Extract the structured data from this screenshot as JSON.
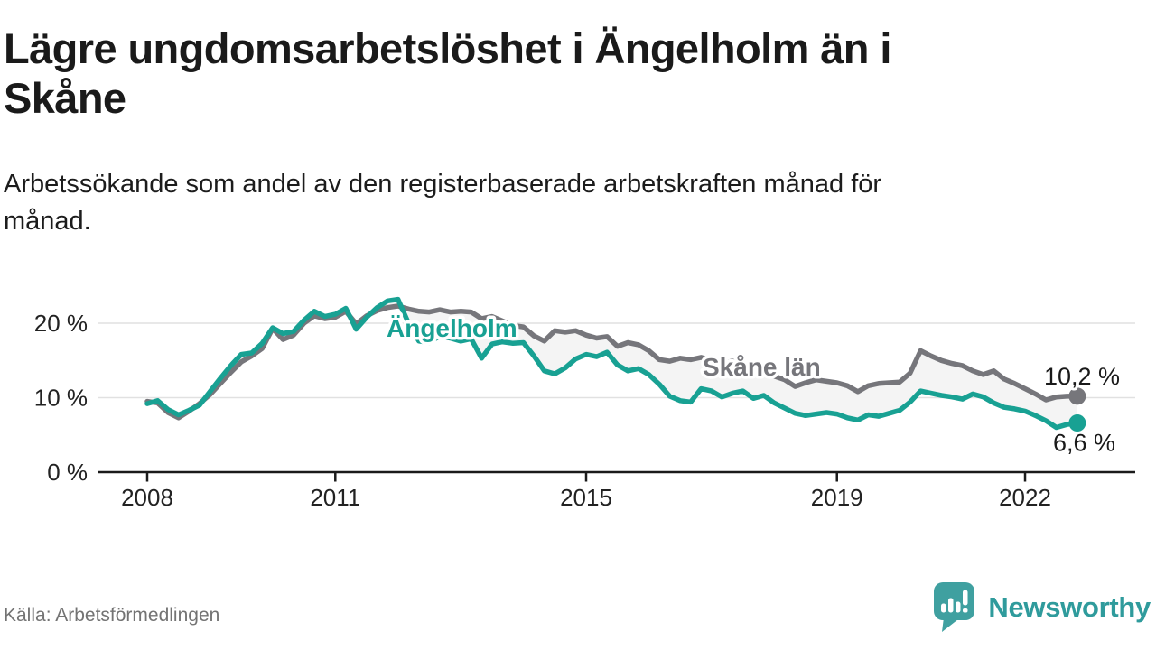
{
  "header": {
    "title": "Lägre ungdomsarbetslöshet i Ängelholm än i\nSkåne",
    "subtitle": "Arbetssökande som andel av den registerbaserade arbetskraften månad för\nmånad."
  },
  "footer": {
    "source": "Källa: Arbetsförmedlingen",
    "brand": "Newsworthy"
  },
  "colors": {
    "angelholm": "#18a193",
    "skane": "#76767b",
    "band_fill": "#f4f4f4",
    "grid": "#e1e1e1",
    "axis": "#1a1a1a",
    "tick_text": "#222222",
    "end_label_text": "#1a1a1a",
    "brand_teal": "#3fa0a0"
  },
  "chart_data": {
    "type": "line",
    "title": "Lägre ungdomsarbetslöshet i Ängelholm än i Skåne",
    "xlabel": "",
    "ylabel": "",
    "x_start": 2008.0,
    "x_step_years": 0.1666667,
    "x_end": 2022.8333,
    "ylim": [
      0,
      24
    ],
    "grid": "horizontal",
    "legend_position": "inline-labels",
    "y_ticks": [
      {
        "value": 0,
        "label": "0 %"
      },
      {
        "value": 10,
        "label": "10 %"
      },
      {
        "value": 20,
        "label": "20 %"
      }
    ],
    "x_ticks": [
      {
        "value": 2008,
        "label": "2008"
      },
      {
        "value": 2011,
        "label": "2011"
      },
      {
        "value": 2015,
        "label": "2015"
      },
      {
        "value": 2019,
        "label": "2019"
      },
      {
        "value": 2022,
        "label": "2022"
      }
    ],
    "band_fill_between_series": true,
    "series": [
      {
        "name": "Skåne län",
        "color": "#76767b",
        "end_value": 10.2,
        "end_label": "10,2 %",
        "values": [
          9.5,
          9.3,
          8.0,
          7.3,
          8.2,
          9.2,
          10.4,
          11.9,
          13.4,
          14.8,
          15.6,
          16.6,
          19.3,
          17.8,
          18.4,
          20.0,
          21.0,
          20.6,
          20.8,
          21.6,
          19.9,
          21.0,
          21.7,
          22.1,
          22.3,
          21.9,
          21.6,
          21.5,
          21.8,
          21.5,
          21.6,
          21.5,
          20.6,
          20.9,
          20.3,
          19.7,
          19.5,
          18.3,
          17.6,
          19.0,
          18.8,
          19.0,
          18.4,
          18.0,
          18.2,
          16.9,
          17.4,
          17.1,
          16.3,
          15.1,
          14.9,
          15.3,
          15.1,
          15.4,
          15.0,
          14.6,
          14.9,
          14.4,
          13.7,
          13.3,
          12.9,
          12.4,
          11.5,
          12.0,
          12.4,
          12.2,
          12.0,
          11.6,
          10.8,
          11.6,
          11.9,
          12.0,
          12.1,
          13.3,
          16.3,
          15.6,
          15.0,
          14.6,
          14.3,
          13.6,
          13.1,
          13.6,
          12.5,
          11.9,
          11.2,
          10.5,
          9.7,
          10.1,
          10.2,
          10.2
        ]
      },
      {
        "name": "Ängelholm",
        "color": "#18a193",
        "end_value": 6.6,
        "end_label": "6,6 %",
        "values": [
          9.2,
          9.6,
          8.4,
          7.7,
          8.3,
          9.0,
          10.8,
          12.6,
          14.3,
          15.8,
          16.0,
          17.3,
          19.4,
          18.6,
          18.9,
          20.4,
          21.6,
          20.9,
          21.2,
          22.0,
          19.2,
          20.8,
          22.1,
          23.0,
          23.2,
          20.0,
          17.6,
          17.4,
          18.3,
          18.0,
          17.6,
          17.9,
          15.3,
          17.2,
          17.5,
          17.3,
          17.4,
          15.6,
          13.6,
          13.2,
          14.0,
          15.2,
          15.8,
          15.5,
          16.1,
          14.4,
          13.6,
          13.9,
          13.1,
          11.8,
          10.2,
          9.6,
          9.4,
          11.2,
          10.9,
          10.1,
          10.6,
          10.9,
          9.9,
          10.3,
          9.3,
          8.6,
          7.9,
          7.6,
          7.8,
          8.0,
          7.8,
          7.3,
          7.0,
          7.7,
          7.5,
          7.9,
          8.3,
          9.4,
          10.9,
          10.6,
          10.3,
          10.1,
          9.8,
          10.5,
          10.1,
          9.3,
          8.7,
          8.5,
          8.2,
          7.6,
          6.9,
          6.0,
          6.4,
          6.6
        ]
      }
    ]
  }
}
